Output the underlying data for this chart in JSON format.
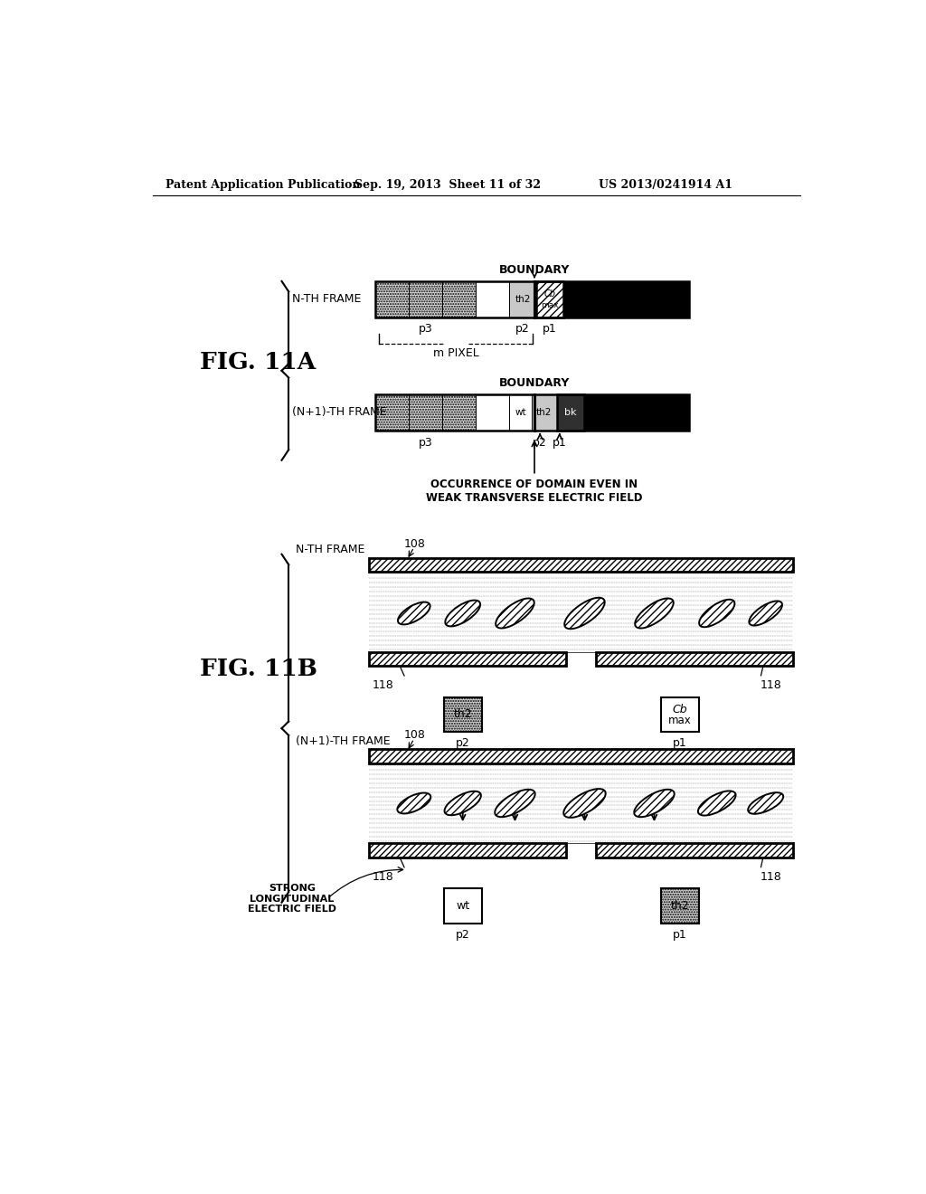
{
  "header_left": "Patent Application Publication",
  "header_center": "Sep. 19, 2013  Sheet 11 of 32",
  "header_right": "US 2013/0241914 A1",
  "fig_label_A": "FIG. 11A",
  "fig_label_B": "FIG. 11B",
  "bg_color": "#ffffff",
  "text_color": "#000000"
}
